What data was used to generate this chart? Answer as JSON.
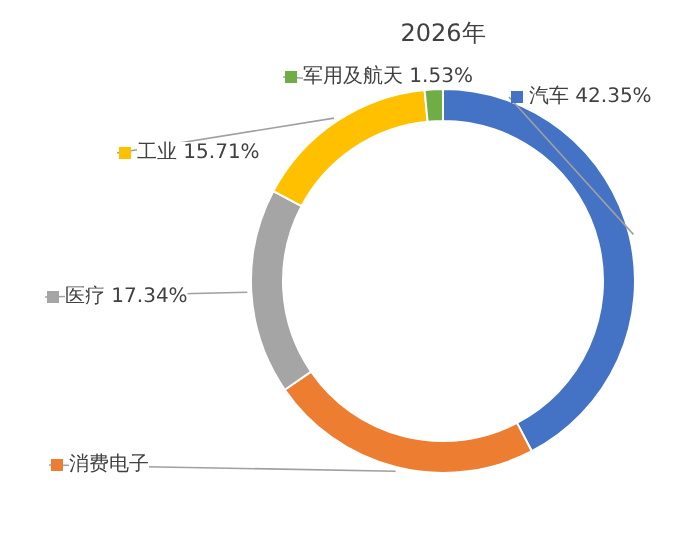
{
  "chart_data": {
    "type": "donut",
    "title": "2026年",
    "categories": [
      "汽车",
      "消费电子",
      "医疗",
      "工业",
      "军用及航天"
    ],
    "values": [
      42.35,
      23.07,
      17.34,
      15.71,
      1.53
    ],
    "value_labels": [
      "42.35%",
      null,
      "17.34%",
      "15.71%",
      "1.53%"
    ],
    "colors": [
      "#4472c4",
      "#ed7d31",
      "#a5a5a5",
      "#ffc000",
      "#70ad47"
    ],
    "legend": "left"
  }
}
